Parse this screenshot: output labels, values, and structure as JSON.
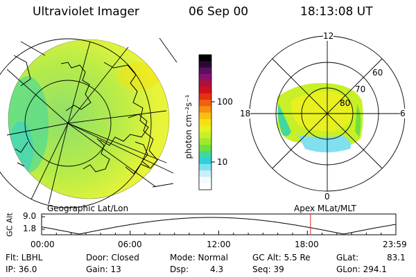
{
  "header": {
    "instrument": "Ultraviolet Imager",
    "date": "06 Sep 00",
    "time": "18:13:08 UT"
  },
  "colorbar": {
    "label": "photon cm⁻²s⁻¹",
    "ticks": [
      "100",
      "10"
    ],
    "colors": [
      "#000000",
      "#2a0a33",
      "#5a1060",
      "#8a1070",
      "#b0103a",
      "#d01020",
      "#e83010",
      "#f06010",
      "#f59010",
      "#f8c010",
      "#f5e010",
      "#e8f020",
      "#c8f028",
      "#a0e830",
      "#70e038",
      "#40d8a0",
      "#30d0d8",
      "#80e0f0",
      "#c8f0f8",
      "#f4fbfd",
      "#ffffff"
    ]
  },
  "left_panel": {
    "label": "Geographic Lat/Lon"
  },
  "right_panel": {
    "label": "Apex  MLat/MLT",
    "mlt_labels": {
      "top": "12",
      "left": "18",
      "right": "6",
      "bottom": "0"
    },
    "lat_labels": [
      "60",
      "70",
      "80"
    ]
  },
  "timeline": {
    "y_title": "GC Alt",
    "y_ticks": [
      "9.0",
      "1.8"
    ],
    "x_ticks": [
      "00:00",
      "06:00",
      "12:00",
      "18:00",
      "23:59"
    ],
    "marker_time_fraction": 0.759
  },
  "info": {
    "flt": "Flt: LBHL",
    "ip": "IP: 36.0",
    "door": "Door: Closed",
    "gain": "Gain: 13",
    "mode": "Mode: Normal",
    "dsp": "Dsp:",
    "dsp_value": "4.3",
    "gc_alt": "GC Alt: 5.5 Re",
    "seq": "Seq: 39",
    "glat": "GLat:",
    "glat_value": "83.1",
    "glon": "GLon: 294.1"
  }
}
